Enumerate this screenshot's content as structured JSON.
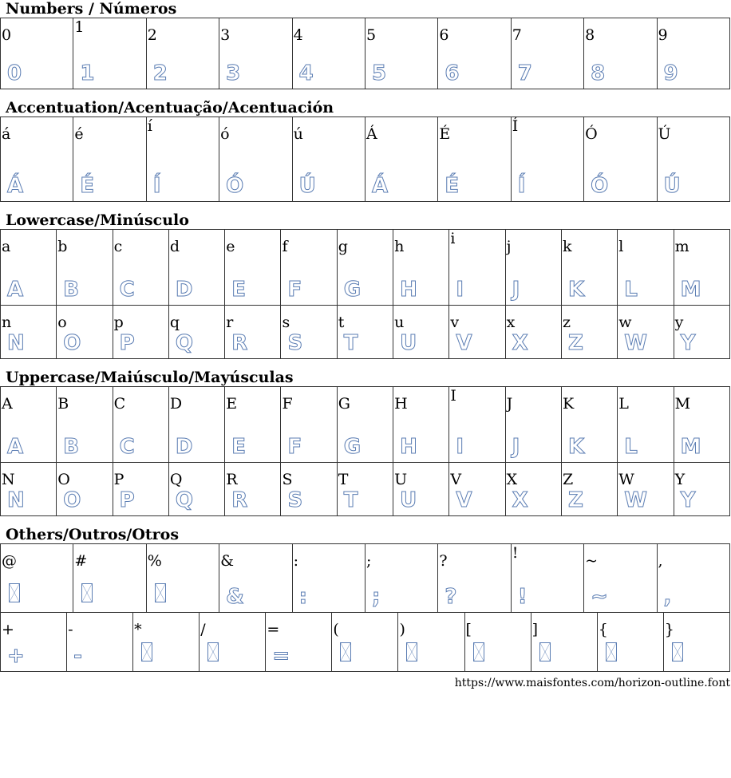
{
  "sections": [
    {
      "title": "Numbers / Números",
      "rows": [
        [
          "0",
          "1",
          "2",
          "3",
          "4",
          "5",
          "6",
          "7",
          "8",
          "9"
        ]
      ],
      "row_heights": [
        89
      ]
    },
    {
      "title": "Accentuation/Acentuação/Acentuación",
      "rows": [
        [
          "á",
          "é",
          "í",
          "ó",
          "ú",
          "Á",
          "É",
          "Í",
          "Ó",
          "Ú"
        ]
      ],
      "row_heights": [
        106
      ]
    },
    {
      "title": "Lowercase/Minúsculo",
      "rows": [
        [
          "a",
          "b",
          "c",
          "d",
          "e",
          "f",
          "g",
          "h",
          "i",
          "j",
          "k",
          "l",
          "m"
        ],
        [
          "n",
          "o",
          "p",
          "q",
          "r",
          "s",
          "t",
          "u",
          "v",
          "x",
          "z",
          "w",
          "y"
        ]
      ],
      "row_heights": [
        95,
        67
      ]
    },
    {
      "title": "Uppercase/Maiúsculo/Mayúsculas",
      "rows": [
        [
          "A",
          "B",
          "C",
          "D",
          "E",
          "F",
          "G",
          "H",
          "I",
          "J",
          "K",
          "L",
          "M"
        ],
        [
          "N",
          "O",
          "P",
          "Q",
          "R",
          "S",
          "T",
          "U",
          "V",
          "X",
          "Z",
          "W",
          "Y"
        ]
      ],
      "row_heights": [
        95,
        67
      ]
    },
    {
      "title": "Others/Outros/Otros",
      "rows": [
        [
          "@",
          "#",
          "%",
          "&",
          ":",
          ";",
          "?",
          "!",
          "~",
          ","
        ]
      ],
      "row_heights": [
        86
      ]
    },
    {
      "title": "",
      "rows": [
        [
          "+",
          "-",
          "*",
          "/",
          "=",
          "(",
          ")",
          "[",
          "]",
          "{",
          "}"
        ]
      ],
      "row_heights": [
        74
      ]
    }
  ],
  "missing_glyphs": [
    "@",
    "#",
    "%",
    "*",
    "/",
    "(",
    ")",
    "[",
    "]",
    "{",
    "}"
  ],
  "glyph_color": "#5b7db3",
  "footer": "https://www.maisfontes.com/horizon-outline.font"
}
